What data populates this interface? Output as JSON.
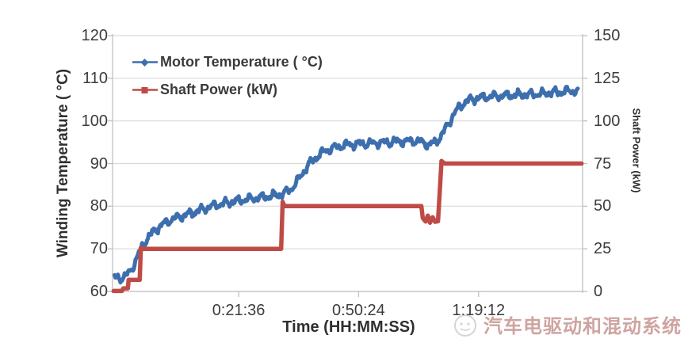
{
  "watermark": {
    "text": "汽车电驱动和混动系统"
  },
  "colors": {
    "series_blue": "#3D6FAE",
    "series_red": "#BF4B47",
    "grid": "#D9D9D9",
    "axis": "#C0C0C0",
    "text": "#3C3C3C",
    "watermark": "#B06C68"
  },
  "chart_data": {
    "type": "line",
    "title": "",
    "grid": "horizontal",
    "legend_position": "top-left-inside",
    "x_axis": {
      "label": "Time (HH:MM:SS)",
      "tick_labels": [
        "0:21:36",
        "0:50:24",
        "1:19:12"
      ],
      "tick_values_seconds": [
        1296,
        3024,
        4752
      ],
      "range_seconds": [
        -520,
        6250
      ]
    },
    "y_axis_left": {
      "label": "Winding Temperature ( °C)",
      "ticks": [
        60,
        70,
        80,
        90,
        100,
        110,
        120
      ],
      "range": [
        60,
        120
      ]
    },
    "y_axis_right": {
      "label": "Shaft Power (kW)",
      "ticks": [
        0,
        25,
        50,
        75,
        100,
        125,
        150
      ],
      "range": [
        0,
        150
      ]
    },
    "series": [
      {
        "name": "Motor Temperature ( °C)",
        "axis": "left",
        "color": "#3D6FAE",
        "marker": "diamond",
        "noisy": true,
        "noise_amplitude_c": 1.0,
        "points": [
          [
            -490,
            63.1
          ],
          [
            -400,
            63.2
          ],
          [
            -330,
            63.6
          ],
          [
            -260,
            64.8
          ],
          [
            -180,
            67.5
          ],
          [
            -100,
            70.3
          ],
          [
            -20,
            72.4
          ],
          [
            80,
            74.2
          ],
          [
            200,
            75.7
          ],
          [
            330,
            76.9
          ],
          [
            480,
            77.7
          ],
          [
            640,
            78.5
          ],
          [
            800,
            79.4
          ],
          [
            950,
            80.2
          ],
          [
            1100,
            80.7
          ],
          [
            1300,
            81.3
          ],
          [
            1500,
            81.8
          ],
          [
            1700,
            82.2
          ],
          [
            1850,
            82.6
          ],
          [
            1950,
            83.0
          ],
          [
            2050,
            84.0
          ],
          [
            2150,
            86.0
          ],
          [
            2250,
            88.6
          ],
          [
            2350,
            90.6
          ],
          [
            2450,
            92.0
          ],
          [
            2570,
            93.2
          ],
          [
            2700,
            93.9
          ],
          [
            2850,
            94.4
          ],
          [
            3050,
            94.6
          ],
          [
            3250,
            94.8
          ],
          [
            3450,
            95.0
          ],
          [
            3650,
            95.2
          ],
          [
            3850,
            95.3
          ],
          [
            3960,
            94.9
          ],
          [
            4040,
            94.4
          ],
          [
            4120,
            94.9
          ],
          [
            4200,
            96.2
          ],
          [
            4290,
            98.5
          ],
          [
            4380,
            101.2
          ],
          [
            4470,
            103.2
          ],
          [
            4580,
            104.7
          ],
          [
            4720,
            105.3
          ],
          [
            4900,
            105.7
          ],
          [
            5100,
            105.9
          ],
          [
            5300,
            106.1
          ],
          [
            5500,
            106.2
          ],
          [
            5700,
            106.4
          ],
          [
            5850,
            106.7
          ],
          [
            6000,
            106.9
          ],
          [
            6100,
            107.1
          ],
          [
            6190,
            107.0
          ]
        ]
      },
      {
        "name": "Shaft Power (kW)",
        "axis": "right",
        "color": "#BF4B47",
        "marker": "square",
        "noisy": false,
        "points": [
          [
            -505,
            0.3
          ],
          [
            -385,
            0.3
          ],
          [
            -365,
            1.8
          ],
          [
            -300,
            1.8
          ],
          [
            -288,
            6.8
          ],
          [
            -128,
            6.8
          ],
          [
            -112,
            25.6
          ],
          [
            -95,
            25
          ],
          [
            1908,
            25
          ],
          [
            1930,
            52.5
          ],
          [
            1955,
            50
          ],
          [
            3928,
            50
          ],
          [
            3948,
            43
          ],
          [
            3990,
            41
          ],
          [
            4020,
            44.5
          ],
          [
            4052,
            40.3
          ],
          [
            4090,
            43.5
          ],
          [
            4125,
            40.8
          ],
          [
            4168,
            41.2
          ],
          [
            4195,
            60
          ],
          [
            4218,
            76.5
          ],
          [
            4262,
            75
          ],
          [
            6235,
            75
          ]
        ]
      }
    ]
  }
}
